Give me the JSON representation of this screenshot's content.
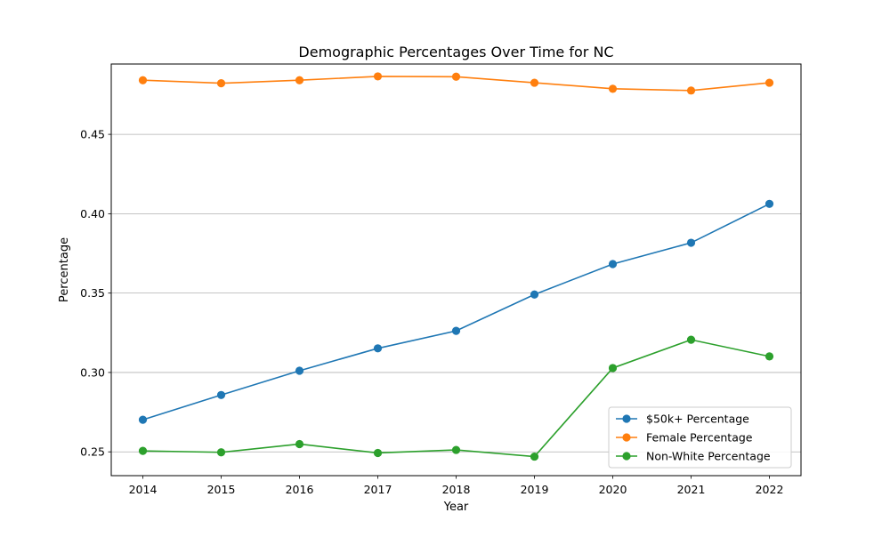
{
  "chart_data": {
    "type": "line",
    "title": "Demographic Percentages Over Time for NC",
    "xlabel": "Year",
    "ylabel": "Percentage",
    "x": [
      "2014",
      "2015",
      "2016",
      "2017",
      "2018",
      "2019",
      "2020",
      "2021",
      "2022"
    ],
    "ylim": [
      0.235,
      0.4943
    ],
    "yticks": [
      "0.25",
      "0.30",
      "0.35",
      "0.40",
      "0.45"
    ],
    "grid": "y-major",
    "legend_position": "lower right",
    "series": [
      {
        "name": "$50k+ Percentage",
        "color": "#1f77b4",
        "values": [
          0.2702,
          0.2858,
          0.3011,
          0.3152,
          0.3262,
          0.3491,
          0.3683,
          0.3817,
          0.4062
        ]
      },
      {
        "name": "Female Percentage",
        "color": "#ff7f0e",
        "values": [
          0.4841,
          0.4822,
          0.4841,
          0.4865,
          0.4863,
          0.4825,
          0.4787,
          0.4776,
          0.4825
        ]
      },
      {
        "name": "Non-White Percentage",
        "color": "#2ca02c",
        "values": [
          0.2506,
          0.2497,
          0.2549,
          0.2493,
          0.2512,
          0.247,
          0.3028,
          0.3206,
          0.3101
        ]
      }
    ]
  }
}
